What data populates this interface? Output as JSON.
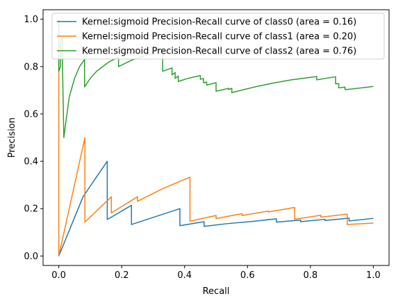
{
  "chart_data": {
    "type": "line",
    "title": "",
    "xlabel": "Recall",
    "ylabel": "Precision",
    "xlim": [
      -0.05,
      1.05
    ],
    "ylim": [
      -0.04,
      1.04
    ],
    "xticks": [
      0.0,
      0.2,
      0.4,
      0.6,
      0.8,
      1.0
    ],
    "xtick_labels": [
      "0.0",
      "0.2",
      "0.4",
      "0.6",
      "0.8",
      "1.0"
    ],
    "yticks": [
      0.0,
      0.2,
      0.4,
      0.6,
      0.8,
      1.0
    ],
    "ytick_labels": [
      "0.0",
      "0.2",
      "0.4",
      "0.6",
      "0.8",
      "1.0"
    ],
    "grid": false,
    "legend_position": "top-right",
    "series": [
      {
        "name": "Kernel:sigmoid Precision-Recall curve of class0 (area = 0.16)",
        "color": "#1f77b4",
        "points": [
          [
            0.0,
            0.0
          ],
          [
            0.077,
            0.25
          ],
          [
            0.154,
            0.4
          ],
          [
            0.154,
            0.154
          ],
          [
            0.231,
            0.214
          ],
          [
            0.231,
            0.133
          ],
          [
            0.385,
            0.2
          ],
          [
            0.385,
            0.128
          ],
          [
            0.462,
            0.145
          ],
          [
            0.462,
            0.125
          ],
          [
            0.538,
            0.137
          ],
          [
            0.615,
            0.146
          ],
          [
            0.692,
            0.157
          ],
          [
            0.692,
            0.143
          ],
          [
            0.769,
            0.152
          ],
          [
            0.769,
            0.145
          ],
          [
            0.846,
            0.155
          ],
          [
            0.846,
            0.15
          ],
          [
            0.923,
            0.16
          ],
          [
            0.923,
            0.148
          ],
          [
            1.0,
            0.159
          ]
        ]
      },
      {
        "name": "Kernel:sigmoid Precision-Recall curve of class1 (area = 0.20)",
        "color": "#ff7f0e",
        "points": [
          [
            0.0,
            0.0
          ],
          [
            0.0,
            1.0
          ],
          [
            0.0,
            0.0
          ],
          [
            0.083,
            0.5
          ],
          [
            0.083,
            0.143
          ],
          [
            0.167,
            0.25
          ],
          [
            0.167,
            0.182
          ],
          [
            0.25,
            0.25
          ],
          [
            0.25,
            0.231
          ],
          [
            0.333,
            0.286
          ],
          [
            0.417,
            0.333
          ],
          [
            0.417,
            0.147
          ],
          [
            0.5,
            0.171
          ],
          [
            0.5,
            0.158
          ],
          [
            0.583,
            0.179
          ],
          [
            0.583,
            0.171
          ],
          [
            0.667,
            0.19
          ],
          [
            0.667,
            0.186
          ],
          [
            0.75,
            0.205
          ],
          [
            0.75,
            0.155
          ],
          [
            0.833,
            0.172
          ],
          [
            0.833,
            0.164
          ],
          [
            0.917,
            0.177
          ],
          [
            0.917,
            0.133
          ],
          [
            1.0,
            0.139
          ]
        ]
      },
      {
        "name": "Kernel:sigmoid Precision-Recall curve of class2 (area = 0.76)",
        "color": "#2ca02c",
        "points": [
          [
            0.0,
            1.0
          ],
          [
            0.0,
            0.78
          ],
          [
            0.0055,
            0.8
          ],
          [
            0.0055,
            0.9
          ],
          [
            0.011,
            0.92
          ],
          [
            0.011,
            0.86
          ],
          [
            0.016,
            0.5
          ],
          [
            0.033,
            0.67
          ],
          [
            0.05,
            0.75
          ],
          [
            0.066,
            0.8
          ],
          [
            0.082,
            0.83
          ],
          [
            0.082,
            0.714
          ],
          [
            0.1,
            0.75
          ],
          [
            0.12,
            0.78
          ],
          [
            0.14,
            0.8
          ],
          [
            0.16,
            0.82
          ],
          [
            0.19,
            0.84
          ],
          [
            0.19,
            0.8
          ],
          [
            0.23,
            0.826
          ],
          [
            0.26,
            0.84
          ],
          [
            0.3,
            0.857
          ],
          [
            0.33,
            0.875
          ],
          [
            0.33,
            0.78
          ],
          [
            0.36,
            0.794
          ],
          [
            0.36,
            0.765
          ],
          [
            0.37,
            0.775
          ],
          [
            0.37,
            0.75
          ],
          [
            0.38,
            0.76
          ],
          [
            0.38,
            0.737
          ],
          [
            0.41,
            0.75
          ],
          [
            0.45,
            0.762
          ],
          [
            0.45,
            0.746
          ],
          [
            0.46,
            0.75
          ],
          [
            0.46,
            0.731
          ],
          [
            0.47,
            0.735
          ],
          [
            0.47,
            0.722
          ],
          [
            0.5,
            0.732
          ],
          [
            0.5,
            0.696
          ],
          [
            0.54,
            0.708
          ],
          [
            0.54,
            0.703
          ],
          [
            0.55,
            0.708
          ],
          [
            0.55,
            0.69
          ],
          [
            0.58,
            0.7
          ],
          [
            0.63,
            0.716
          ],
          [
            0.68,
            0.73
          ],
          [
            0.74,
            0.744
          ],
          [
            0.82,
            0.758
          ],
          [
            0.82,
            0.744
          ],
          [
            0.88,
            0.757
          ],
          [
            0.88,
            0.727
          ],
          [
            0.89,
            0.728
          ],
          [
            0.89,
            0.71
          ],
          [
            0.91,
            0.713
          ],
          [
            0.91,
            0.703
          ],
          [
            0.93,
            0.705
          ],
          [
            1.0,
            0.716
          ]
        ]
      }
    ]
  }
}
